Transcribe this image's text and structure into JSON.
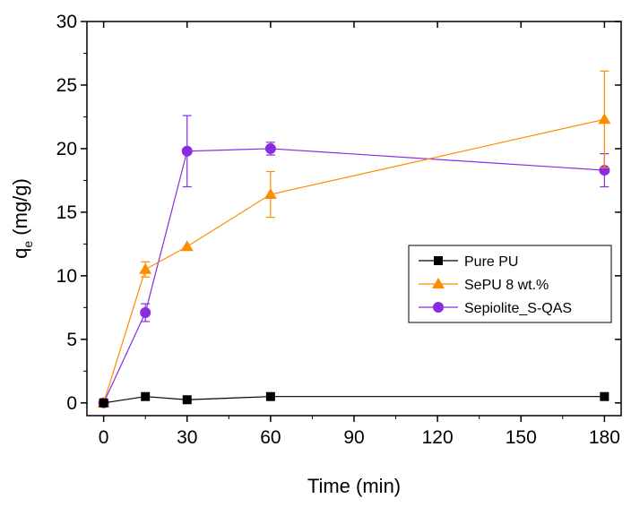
{
  "chart_data": {
    "type": "line",
    "xlabel": "Time (min)",
    "ylabel_main": "q",
    "ylabel_sub": "e",
    "ylabel_unit": " (mg/g)",
    "xlim": [
      -6,
      186
    ],
    "ylim": [
      -1,
      30
    ],
    "xticks": [
      0,
      30,
      60,
      90,
      120,
      150,
      180
    ],
    "yticks": [
      0,
      5,
      10,
      15,
      20,
      25,
      30
    ],
    "grid": false,
    "legend_position": "right",
    "series": [
      {
        "name": "Pure PU",
        "color": "#000000",
        "marker": "square",
        "x": [
          0,
          15,
          30,
          60,
          180
        ],
        "y": [
          0.0,
          0.5,
          0.25,
          0.5,
          0.5
        ],
        "err": [
          0,
          0,
          0,
          0,
          0
        ]
      },
      {
        "name": "SePU 8 wt.%",
        "color": "#ff8c00",
        "marker": "triangle",
        "x": [
          0,
          15,
          30,
          60,
          180
        ],
        "y": [
          0.0,
          10.5,
          12.3,
          16.4,
          22.3
        ],
        "err": [
          0,
          0.6,
          0,
          1.8,
          3.8
        ]
      },
      {
        "name": "Sepiolite_S-QAS",
        "color": "#8a2be2",
        "marker": "circle",
        "x": [
          0,
          15,
          30,
          60,
          180
        ],
        "y": [
          0.0,
          7.1,
          19.8,
          20.0,
          18.3
        ],
        "err": [
          0,
          0.7,
          2.8,
          0.5,
          1.3
        ]
      }
    ]
  }
}
